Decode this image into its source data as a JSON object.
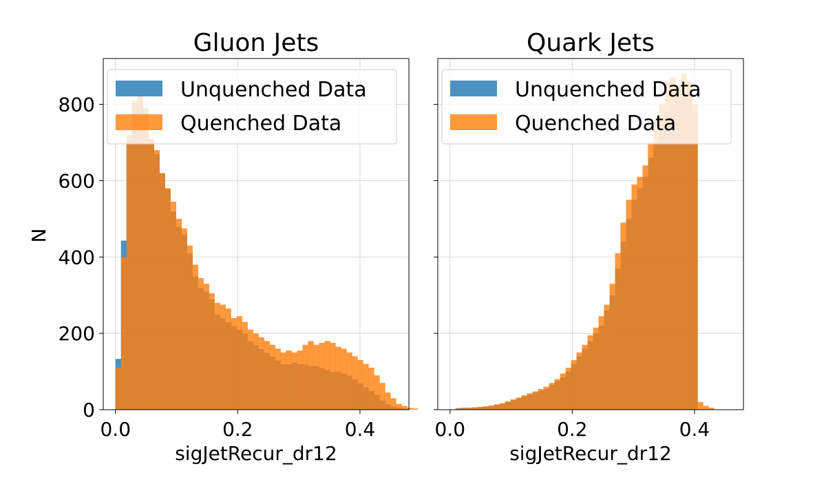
{
  "chart_data": [
    {
      "type": "histogram",
      "title": "Gluon Jets",
      "xlabel": "sigJetRecur_dr12",
      "ylabel": "N",
      "xlim": [
        -0.02,
        0.48
      ],
      "ylim": [
        0,
        920
      ],
      "xticks": [
        0.0,
        0.2,
        0.4
      ],
      "xtick_labels": [
        "0.0",
        "0.2",
        "0.4"
      ],
      "yticks": [
        0,
        200,
        400,
        600,
        800
      ],
      "ytick_labels": [
        "0",
        "200",
        "400",
        "600",
        "800"
      ],
      "grid": true,
      "legend_position": "top-left",
      "bin_start": 0.0,
      "bin_width": 0.009,
      "series": [
        {
          "name": "Unquenched Data",
          "color": "#1f77b4",
          "values": [
            133,
            443,
            703,
            803,
            807,
            779,
            709,
            669,
            619,
            579,
            519,
            479,
            459,
            409,
            349,
            319,
            309,
            289,
            249,
            239,
            229,
            219,
            209,
            199,
            179,
            169,
            159,
            149,
            139,
            129,
            119,
            119,
            124,
            119,
            119,
            114,
            114,
            109,
            104,
            99,
            99,
            94,
            89,
            79,
            69,
            59,
            49,
            39,
            24,
            14,
            9,
            5,
            3
          ]
        },
        {
          "name": "Quenched Data",
          "color": "#ff7f0e",
          "values": [
            110,
            400,
            720,
            810,
            825,
            790,
            710,
            680,
            620,
            580,
            545,
            500,
            475,
            430,
            380,
            345,
            330,
            305,
            280,
            275,
            265,
            240,
            245,
            230,
            210,
            200,
            190,
            180,
            170,
            160,
            150,
            155,
            150,
            155,
            170,
            180,
            170,
            175,
            180,
            175,
            165,
            160,
            150,
            140,
            130,
            120,
            110,
            90,
            70,
            45,
            30,
            15,
            10,
            5,
            3
          ]
        }
      ]
    },
    {
      "type": "histogram",
      "title": "Quark Jets",
      "xlabel": "sigJetRecur_dr12",
      "xlim": [
        -0.02,
        0.48
      ],
      "ylim": [
        0,
        920
      ],
      "xticks": [
        0.0,
        0.2,
        0.4
      ],
      "xtick_labels": [
        "0.0",
        "0.2",
        "0.4"
      ],
      "yticks": [
        0,
        200,
        400,
        600,
        800
      ],
      "grid": true,
      "legend_position": "top-left",
      "bin_start": 0.0,
      "bin_width": 0.009,
      "series": [
        {
          "name": "Unquenched Data",
          "color": "#1f77b4",
          "values": [
            0,
            4,
            5,
            5,
            6,
            7,
            8,
            10,
            13,
            16,
            20,
            25,
            30,
            35,
            40,
            45,
            50,
            55,
            65,
            75,
            85,
            100,
            120,
            140,
            160,
            180,
            200,
            220,
            260,
            300,
            370,
            440,
            500,
            550,
            580,
            610,
            660,
            700,
            750,
            780,
            800,
            810,
            830,
            840,
            780
          ]
        },
        {
          "name": "Quenched Data",
          "color": "#ff7f0e",
          "values": [
            0,
            3,
            4,
            5,
            6,
            7,
            9,
            11,
            14,
            17,
            22,
            27,
            32,
            38,
            43,
            48,
            54,
            60,
            70,
            80,
            95,
            110,
            130,
            150,
            170,
            195,
            215,
            245,
            275,
            330,
            410,
            490,
            550,
            590,
            610,
            640,
            700,
            760,
            800,
            860,
            870,
            850,
            880,
            860,
            800,
            20,
            10,
            5
          ]
        }
      ]
    }
  ]
}
